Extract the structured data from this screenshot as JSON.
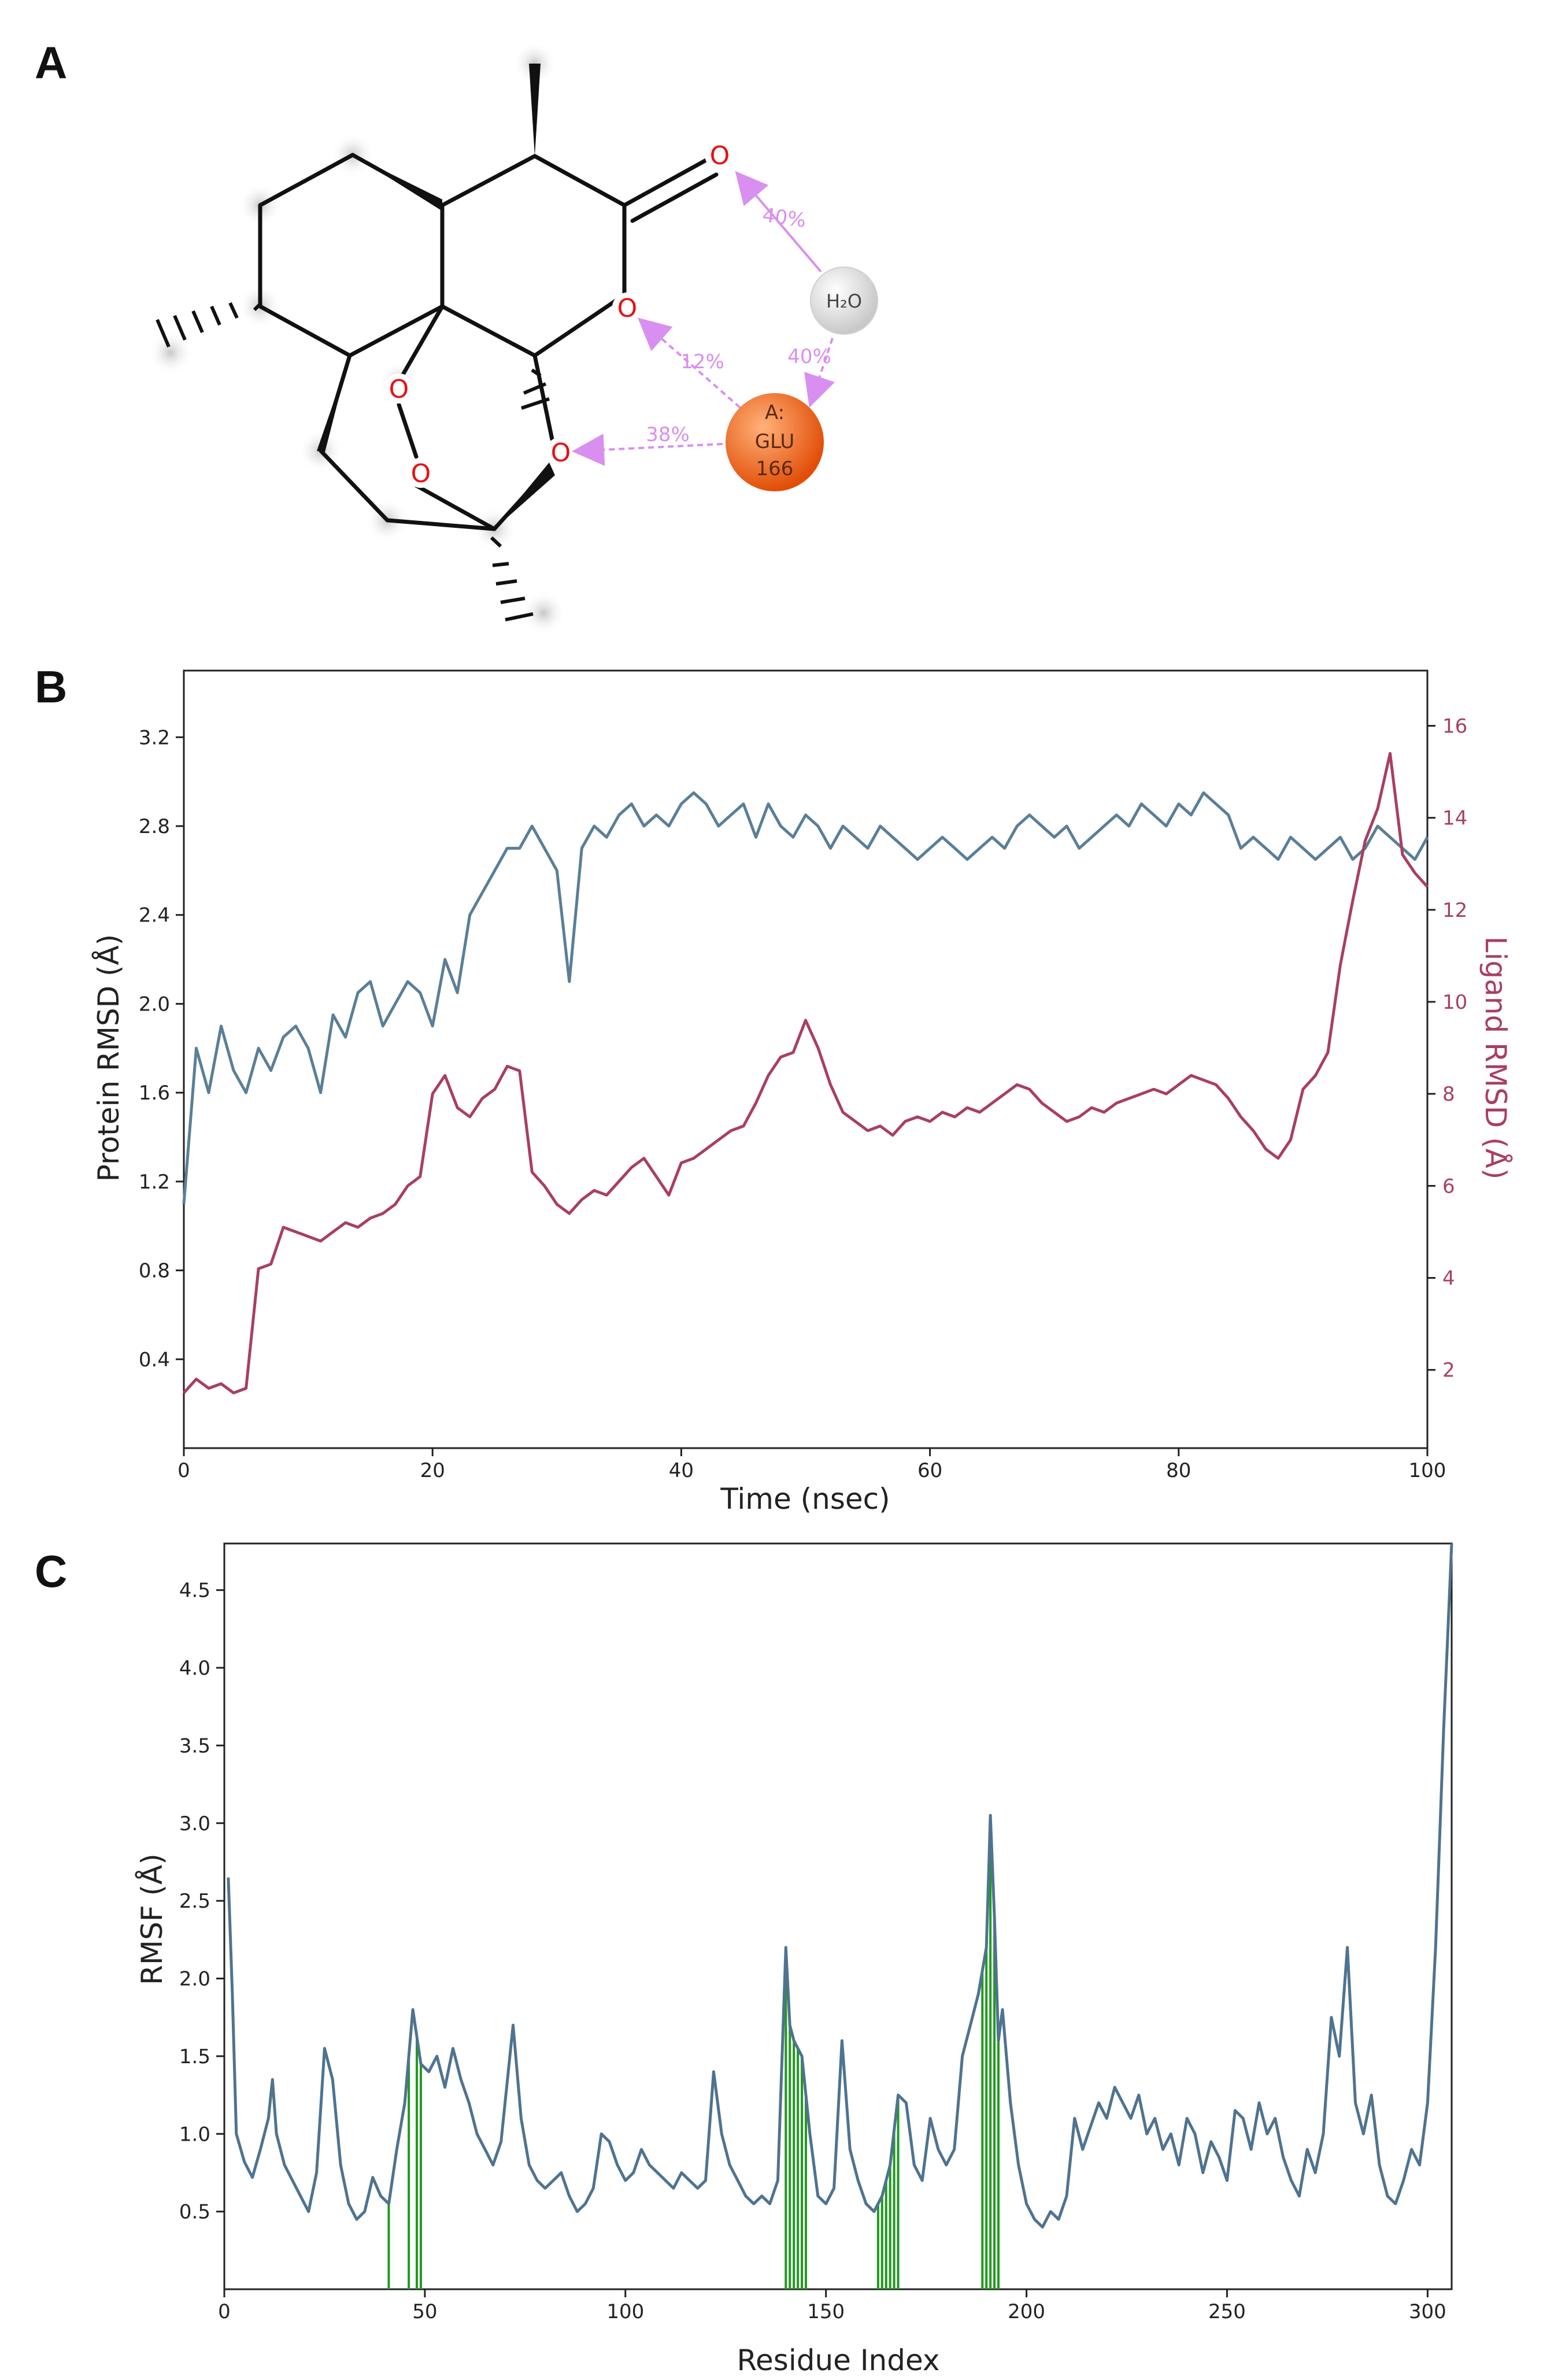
{
  "panels": {
    "a": "A",
    "b": "B",
    "c": "C"
  },
  "molecule": {
    "atoms": {
      "o1": "O",
      "o2": "O",
      "o3": "O",
      "o4": "O",
      "o5": "O"
    },
    "water": "H₂O",
    "residue": {
      "chain": "A:",
      "name": "GLU",
      "number": "166"
    },
    "interactions": [
      "40%",
      "40%",
      "12%",
      "38%"
    ],
    "colors": {
      "highlight": "#cfcfcf",
      "residue": "#e8621f",
      "interaction": "#d98ff0",
      "oxygen": "#e81010"
    }
  },
  "chart_data": [
    {
      "type": "line",
      "panel": "B",
      "xlabel": "Time (nsec)",
      "ylabel": "Protein RMSD (Å)",
      "ylabel_right": "Ligand RMSD (Å)",
      "xlim": [
        0,
        100
      ],
      "ylim": [
        0.0,
        3.5
      ],
      "ylim_right": [
        0.3,
        17.2
      ],
      "xticks": [
        "0",
        "20",
        "40",
        "60",
        "80",
        "100"
      ],
      "yticks": [
        "0.4",
        "0.8",
        "1.2",
        "1.6",
        "2.0",
        "2.4",
        "2.8",
        "3.2"
      ],
      "yticks_right": [
        "2",
        "4",
        "6",
        "8",
        "10",
        "12",
        "14",
        "16"
      ],
      "grid": false,
      "series": [
        {
          "axis": "left",
          "color": "#5a7f97",
          "x": [
            0,
            1,
            2,
            3,
            4,
            5,
            6,
            7,
            8,
            9,
            10,
            11,
            12,
            13,
            14,
            15,
            16,
            17,
            18,
            19,
            20,
            21,
            22,
            23,
            24,
            25,
            26,
            27,
            28,
            29,
            30,
            31,
            32,
            33,
            34,
            35,
            36,
            37,
            38,
            39,
            40,
            41,
            42,
            43,
            44,
            45,
            46,
            47,
            48,
            49,
            50,
            51,
            52,
            53,
            54,
            55,
            56,
            57,
            58,
            59,
            60,
            61,
            62,
            63,
            64,
            65,
            66,
            67,
            68,
            69,
            70,
            71,
            72,
            73,
            74,
            75,
            76,
            77,
            78,
            79,
            80,
            81,
            82,
            83,
            84,
            85,
            86,
            87,
            88,
            89,
            90,
            91,
            92,
            93,
            94,
            95,
            96,
            97,
            98,
            99,
            100
          ],
          "y": [
            1.1,
            1.8,
            1.6,
            1.9,
            1.7,
            1.6,
            1.8,
            1.7,
            1.85,
            1.9,
            1.8,
            1.6,
            1.95,
            1.85,
            2.05,
            2.1,
            1.9,
            2.0,
            2.1,
            2.05,
            1.9,
            2.2,
            2.05,
            2.4,
            2.5,
            2.6,
            2.7,
            2.7,
            2.8,
            2.7,
            2.6,
            2.1,
            2.7,
            2.8,
            2.75,
            2.85,
            2.9,
            2.8,
            2.85,
            2.8,
            2.9,
            2.95,
            2.9,
            2.8,
            2.85,
            2.9,
            2.75,
            2.9,
            2.8,
            2.75,
            2.85,
            2.8,
            2.7,
            2.8,
            2.75,
            2.7,
            2.8,
            2.75,
            2.7,
            2.65,
            2.7,
            2.75,
            2.7,
            2.65,
            2.7,
            2.75,
            2.7,
            2.8,
            2.85,
            2.8,
            2.75,
            2.8,
            2.7,
            2.75,
            2.8,
            2.85,
            2.8,
            2.9,
            2.85,
            2.8,
            2.9,
            2.85,
            2.95,
            2.9,
            2.85,
            2.7,
            2.75,
            2.7,
            2.65,
            2.75,
            2.7,
            2.65,
            2.7,
            2.75,
            2.65,
            2.7,
            2.8,
            2.75,
            2.7,
            2.65,
            2.75
          ]
        },
        {
          "axis": "right",
          "color": "#a83f61",
          "x": [
            0,
            1,
            2,
            3,
            4,
            5,
            6,
            7,
            8,
            9,
            10,
            11,
            12,
            13,
            14,
            15,
            16,
            17,
            18,
            19,
            20,
            21,
            22,
            23,
            24,
            25,
            26,
            27,
            28,
            29,
            30,
            31,
            32,
            33,
            34,
            35,
            36,
            37,
            38,
            39,
            40,
            41,
            42,
            43,
            44,
            45,
            46,
            47,
            48,
            49,
            50,
            51,
            52,
            53,
            54,
            55,
            56,
            57,
            58,
            59,
            60,
            61,
            62,
            63,
            64,
            65,
            66,
            67,
            68,
            69,
            70,
            71,
            72,
            73,
            74,
            75,
            76,
            77,
            78,
            79,
            80,
            81,
            82,
            83,
            84,
            85,
            86,
            87,
            88,
            89,
            90,
            91,
            92,
            93,
            94,
            95,
            96,
            97,
            98,
            99,
            100
          ],
          "y": [
            1.5,
            1.8,
            1.6,
            1.7,
            1.5,
            1.6,
            4.2,
            4.3,
            5.1,
            5.0,
            4.9,
            4.8,
            5.0,
            5.2,
            5.1,
            5.3,
            5.4,
            5.6,
            6.0,
            6.2,
            8.0,
            8.4,
            7.7,
            7.5,
            7.9,
            8.1,
            8.6,
            8.5,
            6.3,
            6.0,
            5.6,
            5.4,
            5.7,
            5.9,
            5.8,
            6.1,
            6.4,
            6.6,
            6.2,
            5.8,
            6.5,
            6.6,
            6.8,
            7.0,
            7.2,
            7.3,
            7.8,
            8.4,
            8.8,
            8.9,
            9.6,
            9.0,
            8.2,
            7.6,
            7.4,
            7.2,
            7.3,
            7.1,
            7.4,
            7.5,
            7.4,
            7.6,
            7.5,
            7.7,
            7.6,
            7.8,
            8.0,
            8.2,
            8.1,
            7.8,
            7.6,
            7.4,
            7.5,
            7.7,
            7.6,
            7.8,
            7.9,
            8.0,
            8.1,
            8.0,
            8.2,
            8.4,
            8.3,
            8.2,
            7.9,
            7.5,
            7.2,
            6.8,
            6.6,
            7.0,
            8.1,
            8.4,
            8.9,
            10.8,
            12.2,
            13.5,
            14.2,
            15.4,
            13.2,
            12.8,
            12.5
          ]
        }
      ]
    },
    {
      "type": "line",
      "panel": "C",
      "xlabel": "Residue Index",
      "ylabel": "RMSF (Å)",
      "xlim": [
        0,
        306
      ],
      "ylim": [
        0.0,
        4.8
      ],
      "xticks": [
        "0",
        "50",
        "100",
        "150",
        "200",
        "250",
        "300"
      ],
      "yticks": [
        "0.5",
        "1.0",
        "1.5",
        "2.0",
        "2.5",
        "3.0",
        "3.5",
        "4.0",
        "4.5"
      ],
      "grid": false,
      "series": [
        {
          "color": "#4f7390",
          "x": [
            1,
            2,
            3,
            5,
            7,
            9,
            11,
            12,
            13,
            15,
            17,
            19,
            21,
            23,
            25,
            27,
            29,
            31,
            33,
            35,
            37,
            39,
            41,
            43,
            45,
            47,
            49,
            51,
            53,
            55,
            57,
            59,
            61,
            63,
            65,
            67,
            69,
            72,
            74,
            76,
            78,
            80,
            82,
            84,
            86,
            88,
            90,
            92,
            94,
            96,
            98,
            100,
            102,
            104,
            106,
            108,
            110,
            112,
            114,
            116,
            118,
            120,
            122,
            124,
            126,
            128,
            130,
            132,
            134,
            136,
            138,
            140,
            141,
            142,
            144,
            146,
            148,
            150,
            152,
            154,
            156,
            158,
            160,
            162,
            164,
            166,
            168,
            170,
            172,
            174,
            176,
            178,
            180,
            182,
            184,
            186,
            188,
            190,
            191,
            192,
            193,
            194,
            196,
            198,
            200,
            202,
            204,
            206,
            208,
            210,
            212,
            214,
            216,
            218,
            220,
            222,
            224,
            226,
            228,
            230,
            232,
            234,
            236,
            238,
            240,
            242,
            244,
            246,
            248,
            250,
            252,
            254,
            256,
            258,
            260,
            262,
            264,
            266,
            268,
            270,
            272,
            274,
            276,
            278,
            280,
            282,
            284,
            286,
            288,
            290,
            292,
            294,
            296,
            298,
            300,
            302,
            303,
            304,
            305,
            306
          ],
          "y": [
            2.65,
            1.9,
            1.0,
            0.82,
            0.72,
            0.9,
            1.1,
            1.35,
            1.0,
            0.8,
            0.7,
            0.6,
            0.5,
            0.75,
            1.55,
            1.35,
            0.8,
            0.55,
            0.45,
            0.5,
            0.72,
            0.6,
            0.55,
            0.9,
            1.2,
            1.8,
            1.45,
            1.4,
            1.5,
            1.3,
            1.55,
            1.35,
            1.2,
            1.0,
            0.9,
            0.8,
            0.95,
            1.7,
            1.1,
            0.8,
            0.7,
            0.65,
            0.7,
            0.75,
            0.6,
            0.5,
            0.55,
            0.65,
            1.0,
            0.95,
            0.8,
            0.7,
            0.75,
            0.9,
            0.8,
            0.75,
            0.7,
            0.65,
            0.75,
            0.7,
            0.65,
            0.7,
            1.4,
            1.0,
            0.8,
            0.7,
            0.6,
            0.55,
            0.6,
            0.55,
            0.7,
            2.2,
            1.7,
            1.6,
            1.5,
            1.0,
            0.6,
            0.55,
            0.65,
            1.6,
            0.9,
            0.7,
            0.55,
            0.5,
            0.6,
            0.8,
            1.25,
            1.2,
            0.8,
            0.7,
            1.1,
            0.9,
            0.8,
            0.9,
            1.5,
            1.7,
            1.9,
            2.2,
            3.05,
            2.4,
            1.6,
            1.8,
            1.2,
            0.8,
            0.55,
            0.45,
            0.4,
            0.5,
            0.45,
            0.6,
            1.1,
            0.9,
            1.05,
            1.2,
            1.1,
            1.3,
            1.2,
            1.1,
            1.25,
            1.0,
            1.1,
            0.9,
            1.0,
            0.8,
            1.1,
            1.0,
            0.75,
            0.95,
            0.85,
            0.7,
            1.15,
            1.1,
            0.9,
            1.2,
            1.0,
            1.1,
            0.85,
            0.7,
            0.6,
            0.9,
            0.75,
            1.0,
            1.75,
            1.5,
            2.2,
            1.2,
            1.0,
            1.25,
            0.8,
            0.6,
            0.55,
            0.7,
            0.9,
            0.8,
            1.2,
            2.2,
            2.9,
            3.6,
            4.2,
            4.8
          ]
        }
      ],
      "contact_residues": [
        41,
        46,
        48,
        49,
        140,
        141,
        142,
        143,
        144,
        145,
        163,
        164,
        165,
        166,
        167,
        168,
        189,
        190,
        191,
        192,
        193
      ],
      "contact_color": "#1f9a1f"
    }
  ]
}
